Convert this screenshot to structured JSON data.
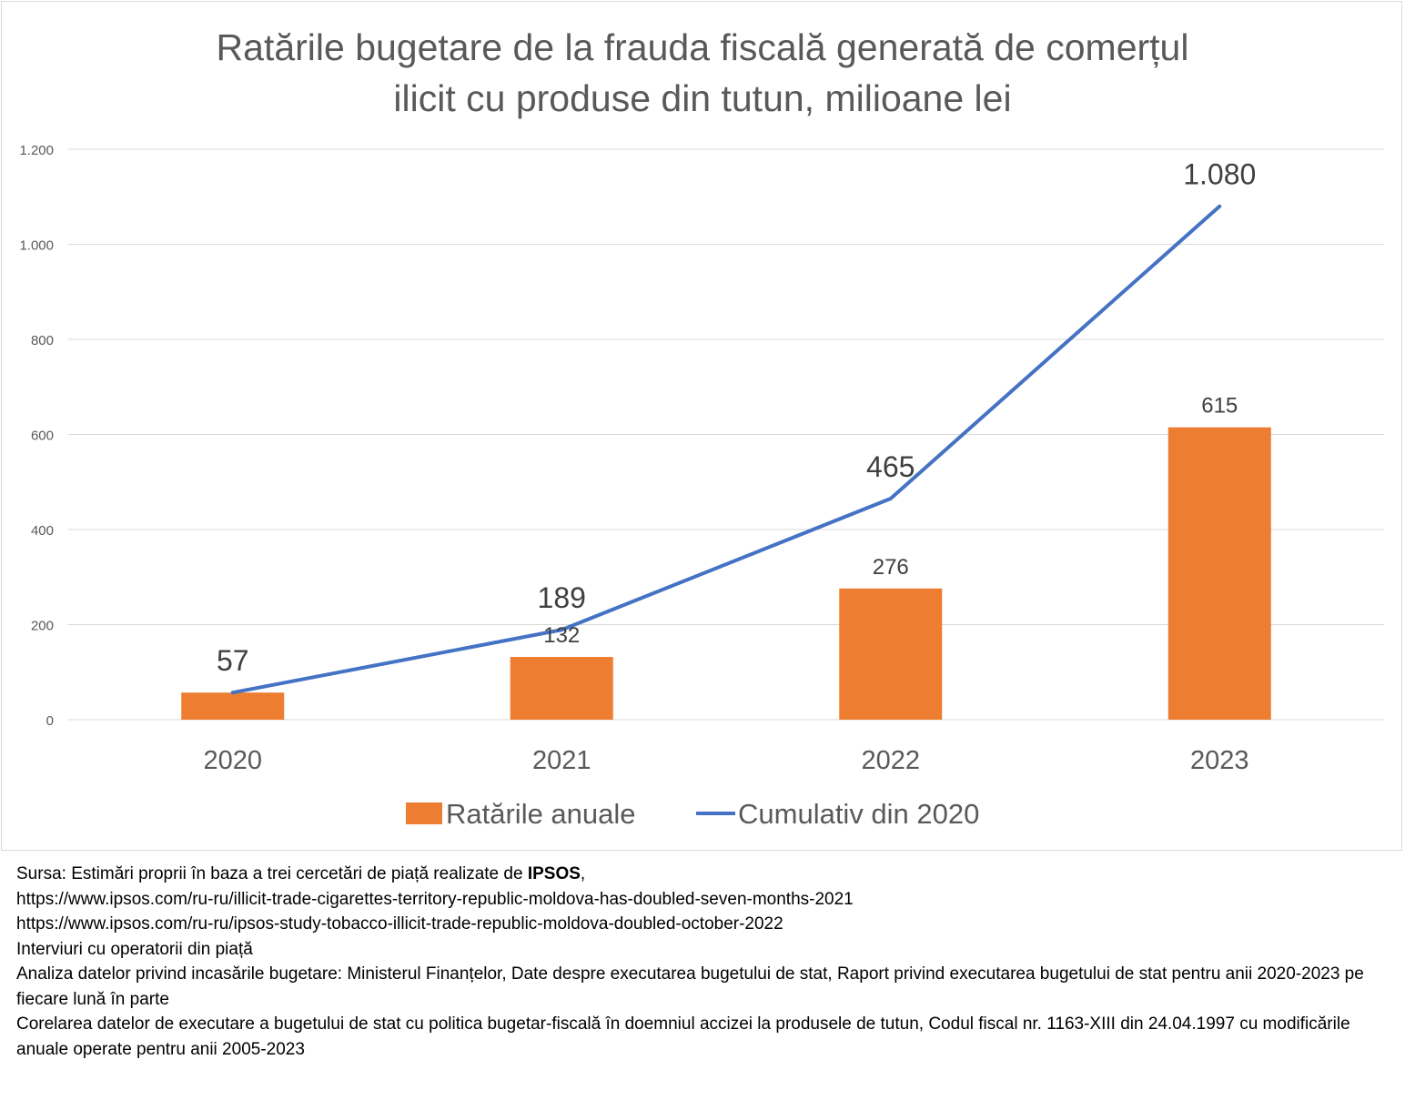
{
  "chart_data": {
    "type": "bar",
    "title_lines": [
      "Ratările bugetare de la frauda fiscală generată de comerțul",
      "ilicit cu produse din tutun, milioane lei"
    ],
    "categories": [
      "2020",
      "2021",
      "2022",
      "2023"
    ],
    "ylim": [
      0,
      1200
    ],
    "yticks": [
      {
        "value": 0,
        "label": "0"
      },
      {
        "value": 200,
        "label": "200"
      },
      {
        "value": 400,
        "label": "400"
      },
      {
        "value": 600,
        "label": "600"
      },
      {
        "value": 800,
        "label": "800"
      },
      {
        "value": 1000,
        "label": "1.000"
      },
      {
        "value": 1200,
        "label": "1.200"
      }
    ],
    "grid": true,
    "legend_position": "bottom",
    "series": [
      {
        "name": "Ratările anuale",
        "type": "bar",
        "color": "#ED7D31",
        "values": [
          57,
          132,
          276,
          615
        ],
        "labels": [
          "",
          "132",
          "276",
          "615"
        ]
      },
      {
        "name": "Cumulativ din 2020",
        "type": "line",
        "color": "#4472C4",
        "values": [
          57,
          189,
          465,
          1080
        ],
        "labels": [
          "57",
          "189",
          "465",
          "1.080"
        ]
      }
    ]
  },
  "source": {
    "line1_prefix": "Sursa: Estimări proprii în baza a trei cercetări de piață realizate de ",
    "line1_bold": "IPSOS",
    "line1_suffix": ",",
    "link1": "https://www.ipsos.com/ru-ru/illicit-trade-cigarettes-territory-republic-moldova-has-doubled-seven-months-2021",
    "link2": "https://www.ipsos.com/ru-ru/ipsos-study-tobacco-illicit-trade-republic-moldova-doubled-october-2022",
    "line4": "Interviuri cu operatorii din piață",
    "line5": "Analiza datelor privind incasările bugetare: Ministerul Finanțelor, Date despre executarea bugetului de stat, Raport privind executarea bugetului de stat pentru anii 2020-2023 pe fiecare lună în parte",
    "line6": "Corelarea datelor de executare a bugetului de stat cu politica bugetar-fiscală în doemniul accizei la produsele de tutun, Codul fiscal nr. 1163-XIII din  24.04.1997 cu modificările anuale operate pentru  anii 2005-2023"
  }
}
